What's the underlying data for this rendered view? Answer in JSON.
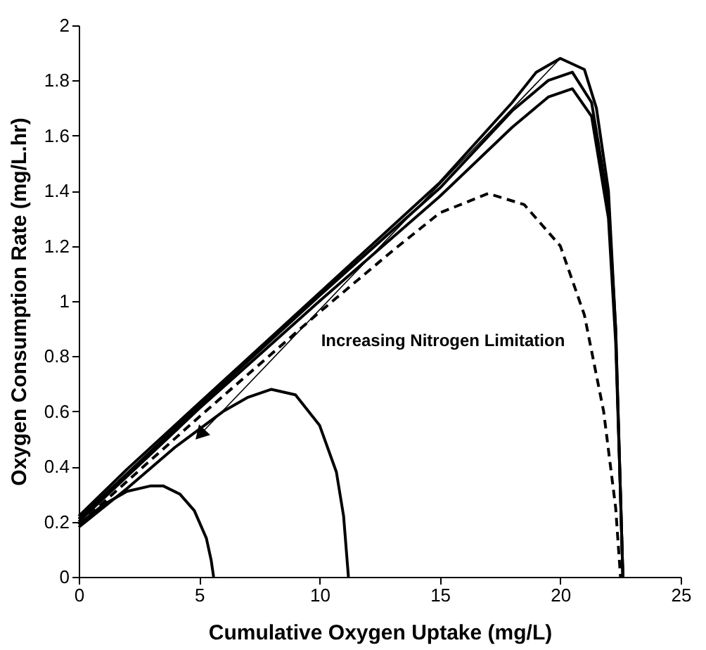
{
  "chart_data": {
    "type": "line",
    "xlabel": "Cumulative Oxygen Uptake (mg/L)",
    "ylabel": "Oxygen Consumption Rate (mg/L.hr)",
    "annotations": [
      "Increasing Nitrogen Limitation"
    ],
    "xlim": [
      0,
      25
    ],
    "xticks": [
      0,
      5,
      10,
      15,
      20,
      25
    ],
    "ylim": [
      0,
      2
    ],
    "yticks": [
      0,
      0.2,
      0.4,
      0.6,
      0.8,
      1,
      1.2,
      1.4,
      1.6,
      1.8,
      2
    ],
    "grid": false,
    "marker": "none",
    "series": [
      {
        "color": "#000000",
        "line_style": "solid",
        "x": [
          0,
          2,
          5,
          10,
          15,
          18,
          19,
          20,
          21,
          21.5,
          22,
          22.3,
          22.5,
          22.6
        ],
        "values": [
          0.22,
          0.39,
          0.63,
          1.03,
          1.43,
          1.72,
          1.83,
          1.88,
          1.84,
          1.7,
          1.4,
          0.9,
          0.3,
          0
        ]
      },
      {
        "color": "#000000",
        "line_style": "solid",
        "x": [
          0,
          5,
          10,
          15,
          18,
          19.5,
          20.5,
          21.3,
          22,
          22.3,
          22.5,
          22.6
        ],
        "values": [
          0.21,
          0.62,
          1.02,
          1.41,
          1.69,
          1.8,
          1.83,
          1.72,
          1.35,
          0.9,
          0.3,
          0
        ]
      },
      {
        "color": "#000000",
        "line_style": "solid",
        "x": [
          0,
          5,
          10,
          15,
          18,
          19.5,
          20.5,
          21.3,
          22,
          22.3,
          22.5,
          22.6
        ],
        "values": [
          0.2,
          0.61,
          1.0,
          1.38,
          1.63,
          1.74,
          1.77,
          1.67,
          1.3,
          0.85,
          0.3,
          0
        ]
      },
      {
        "color": "#000000",
        "line_style": "dashed",
        "x": [
          0,
          5,
          10,
          13,
          15,
          17,
          18.5,
          20,
          21,
          21.8,
          22.3,
          22.5
        ],
        "values": [
          0.19,
          0.58,
          0.96,
          1.18,
          1.32,
          1.39,
          1.35,
          1.2,
          0.95,
          0.6,
          0.25,
          0
        ]
      },
      {
        "color": "#000000",
        "line_style": "solid",
        "x": [
          0,
          2,
          4,
          6,
          7,
          8,
          9,
          10,
          10.7,
          11,
          11.2
        ],
        "values": [
          0.18,
          0.32,
          0.47,
          0.6,
          0.65,
          0.68,
          0.66,
          0.55,
          0.38,
          0.22,
          0
        ]
      },
      {
        "color": "#000000",
        "line_style": "solid",
        "x": [
          0,
          1,
          2,
          3,
          3.5,
          4.2,
          4.8,
          5.3,
          5.5,
          5.6
        ],
        "values": [
          0.19,
          0.26,
          0.31,
          0.33,
          0.33,
          0.3,
          0.24,
          0.14,
          0.06,
          0
        ]
      }
    ]
  }
}
